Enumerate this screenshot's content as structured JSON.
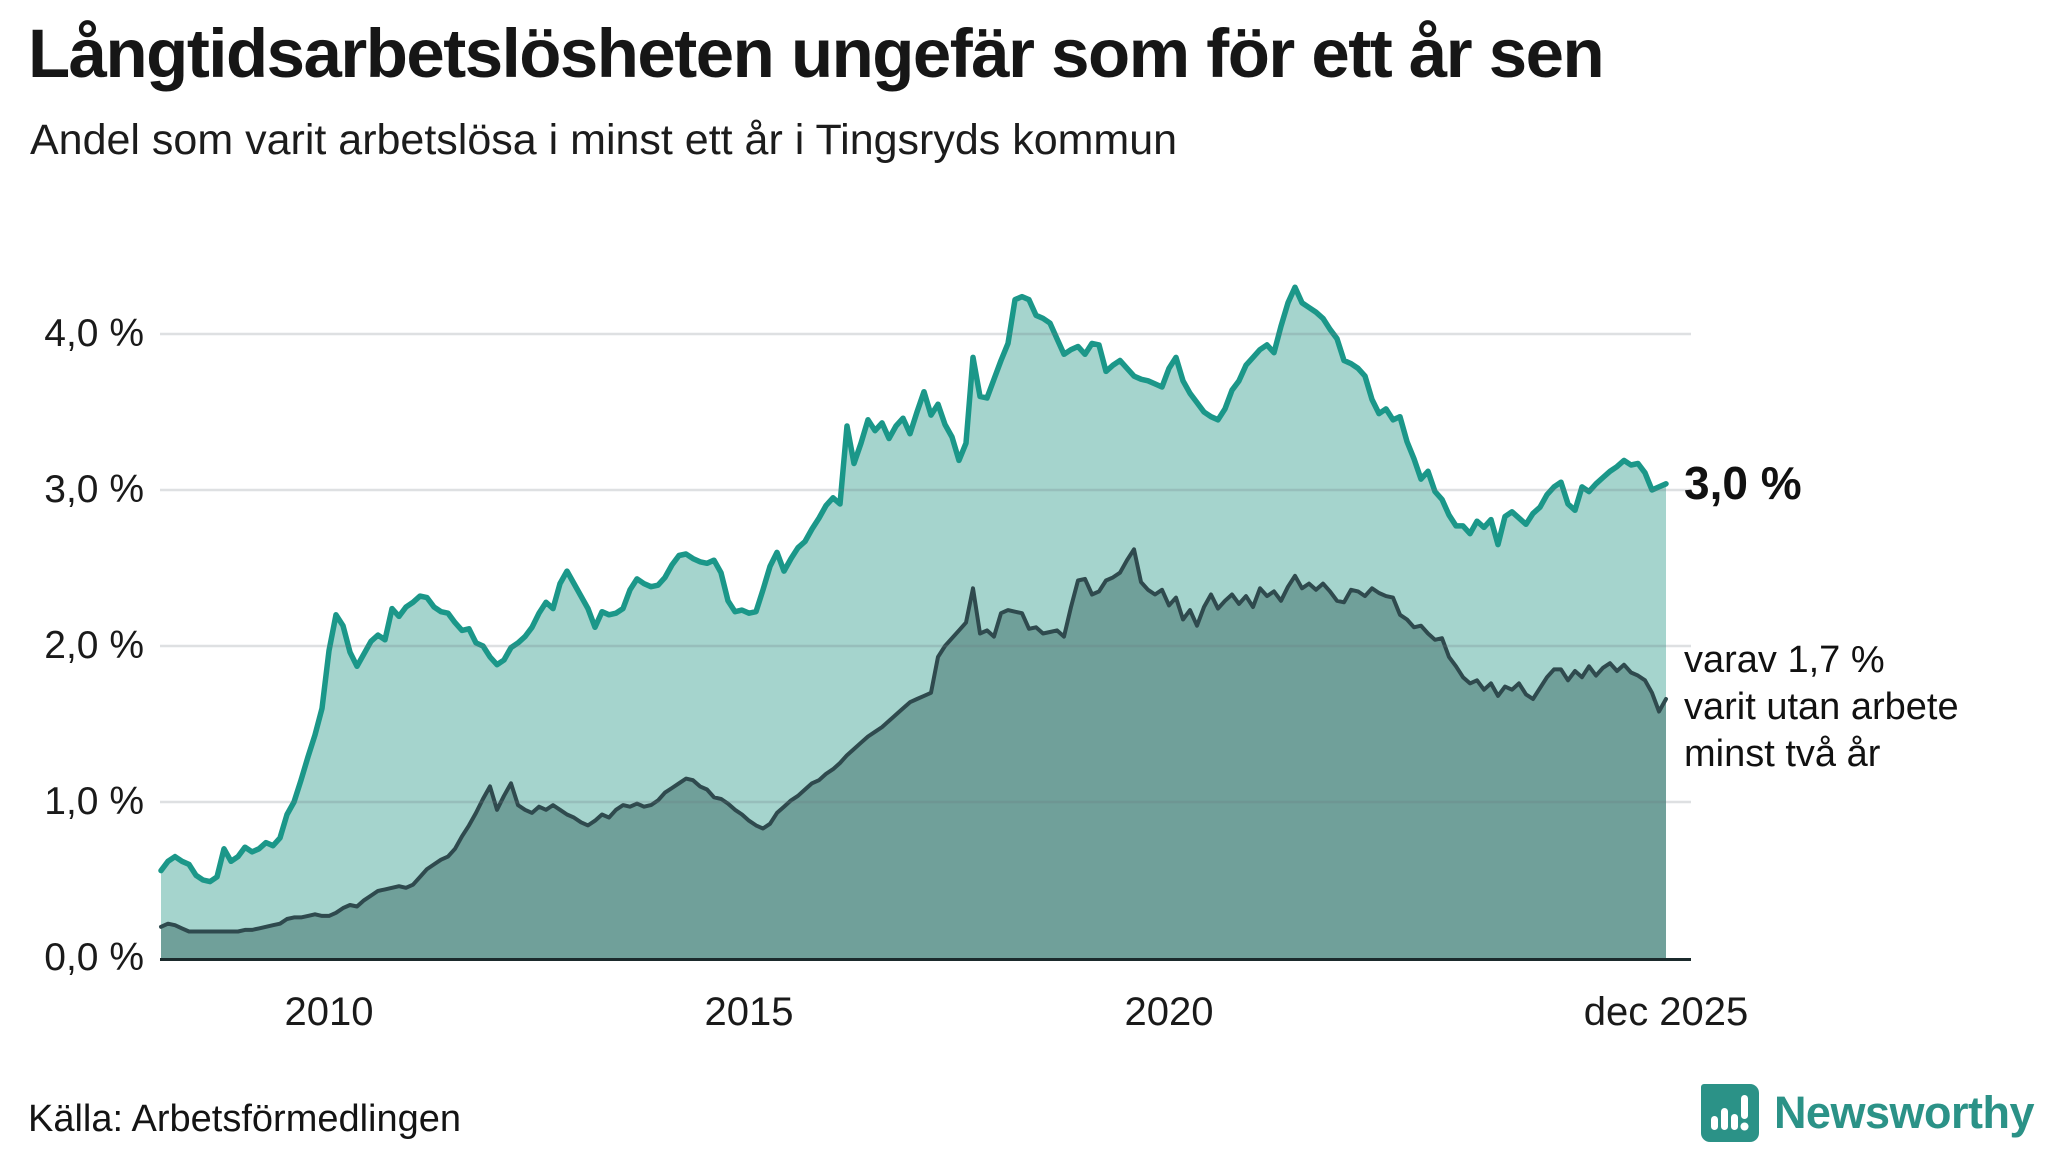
{
  "header": {
    "title": "Långtidsarbetslösheten ungefär som för ett år sen",
    "subtitle": "Andel som varit arbetslösa i minst ett år i Tingsryds kommun"
  },
  "footer": {
    "source": "Källa: Arbetsförmedlingen",
    "brand": "Newsworthy"
  },
  "colors": {
    "series1_line": "#1b9789",
    "series1_fill": "#a5d4cd",
    "series2_line": "#2f4a4e",
    "series2_fill": "#70a09a",
    "gridline": "rgba(105,112,125,0.22)",
    "axis": "#1b2a2c",
    "brand_teal": "#2b9287"
  },
  "chart_data": {
    "type": "area",
    "title": "Långtidsarbetslösheten ungefär som för ett år sen",
    "subtitle": "Andel som varit arbetslösa i minst ett år i Tingsryds kommun",
    "unit": "%",
    "x_start": "2008-01",
    "x_end": "2025-12",
    "frequency": "monthly",
    "ylim": [
      0,
      4.33
    ],
    "grid": true,
    "y_ticks": [
      {
        "label": "4,0 %",
        "value": 4.0
      },
      {
        "label": "3,0 %",
        "value": 3.0
      },
      {
        "label": "2,0 %",
        "value": 2.0
      },
      {
        "label": "1,0 %",
        "value": 1.0
      },
      {
        "label": "0,0 %",
        "value": 0.0
      }
    ],
    "x_ticks": [
      {
        "label": "2010",
        "month_index": 24
      },
      {
        "label": "2015",
        "month_index": 84
      },
      {
        "label": "2020",
        "month_index": 144
      },
      {
        "label": "dec 2025",
        "month_index": 215
      }
    ],
    "annotations": {
      "last_value_label": "3,0 %",
      "secondary_lines": [
        "varav 1,7 %",
        "varit utan arbete",
        "minst två år"
      ]
    },
    "series": [
      {
        "name": "Andel som varit arbetslösa minst ett år",
        "end_label": "3,0 %",
        "values": [
          0.56,
          0.62,
          0.65,
          0.62,
          0.6,
          0.53,
          0.5,
          0.49,
          0.52,
          0.7,
          0.62,
          0.65,
          0.71,
          0.68,
          0.7,
          0.74,
          0.72,
          0.77,
          0.92,
          1.0,
          1.14,
          1.29,
          1.43,
          1.6,
          1.97,
          2.2,
          2.13,
          1.96,
          1.87,
          1.95,
          2.03,
          2.07,
          2.04,
          2.24,
          2.19,
          2.25,
          2.28,
          2.32,
          2.31,
          2.25,
          2.22,
          2.21,
          2.15,
          2.1,
          2.11,
          2.02,
          2.0,
          1.93,
          1.88,
          1.91,
          1.99,
          2.02,
          2.06,
          2.12,
          2.21,
          2.28,
          2.24,
          2.4,
          2.48,
          2.4,
          2.32,
          2.24,
          2.12,
          2.22,
          2.2,
          2.21,
          2.24,
          2.36,
          2.43,
          2.4,
          2.38,
          2.39,
          2.44,
          2.52,
          2.58,
          2.59,
          2.56,
          2.54,
          2.53,
          2.55,
          2.47,
          2.29,
          2.22,
          2.23,
          2.21,
          2.22,
          2.36,
          2.51,
          2.6,
          2.48,
          2.56,
          2.63,
          2.67,
          2.75,
          2.82,
          2.9,
          2.95,
          2.91,
          3.41,
          3.17,
          3.3,
          3.45,
          3.38,
          3.43,
          3.33,
          3.41,
          3.46,
          3.36,
          3.5,
          3.63,
          3.48,
          3.55,
          3.42,
          3.34,
          3.19,
          3.3,
          3.85,
          3.6,
          3.59,
          3.71,
          3.83,
          3.94,
          4.22,
          4.24,
          4.22,
          4.12,
          4.1,
          4.07,
          3.97,
          3.87,
          3.9,
          3.92,
          3.87,
          3.94,
          3.93,
          3.76,
          3.8,
          3.83,
          3.78,
          3.73,
          3.71,
          3.7,
          3.68,
          3.66,
          3.78,
          3.85,
          3.7,
          3.62,
          3.56,
          3.5,
          3.47,
          3.45,
          3.52,
          3.64,
          3.7,
          3.8,
          3.85,
          3.9,
          3.93,
          3.88,
          4.05,
          4.2,
          4.3,
          4.2,
          4.17,
          4.14,
          4.1,
          4.03,
          3.97,
          3.83,
          3.81,
          3.78,
          3.73,
          3.58,
          3.49,
          3.52,
          3.45,
          3.47,
          3.31,
          3.2,
          3.07,
          3.12,
          2.99,
          2.94,
          2.84,
          2.77,
          2.77,
          2.72,
          2.8,
          2.76,
          2.81,
          2.65,
          2.83,
          2.86,
          2.82,
          2.78,
          2.85,
          2.89,
          2.97,
          3.02,
          3.05,
          2.91,
          2.87,
          3.02,
          2.99,
          3.04,
          3.08,
          3.12,
          3.15,
          3.19,
          3.16,
          3.17,
          3.11,
          3.0,
          3.02,
          3.04
        ]
      },
      {
        "name": "varav arbetslösa minst två år",
        "end_label": "1,7 %",
        "values": [
          0.2,
          0.22,
          0.21,
          0.19,
          0.17,
          0.17,
          0.17,
          0.17,
          0.17,
          0.17,
          0.17,
          0.17,
          0.18,
          0.18,
          0.19,
          0.2,
          0.21,
          0.22,
          0.25,
          0.26,
          0.26,
          0.27,
          0.28,
          0.27,
          0.27,
          0.29,
          0.32,
          0.34,
          0.33,
          0.37,
          0.4,
          0.43,
          0.44,
          0.45,
          0.46,
          0.45,
          0.47,
          0.52,
          0.57,
          0.6,
          0.63,
          0.65,
          0.7,
          0.78,
          0.85,
          0.93,
          1.02,
          1.1,
          0.95,
          1.04,
          1.12,
          0.98,
          0.95,
          0.93,
          0.97,
          0.95,
          0.98,
          0.95,
          0.92,
          0.9,
          0.87,
          0.85,
          0.88,
          0.92,
          0.9,
          0.95,
          0.98,
          0.97,
          0.99,
          0.97,
          0.98,
          1.01,
          1.06,
          1.09,
          1.12,
          1.15,
          1.14,
          1.1,
          1.08,
          1.03,
          1.02,
          0.99,
          0.95,
          0.92,
          0.88,
          0.85,
          0.83,
          0.86,
          0.93,
          0.97,
          1.01,
          1.04,
          1.08,
          1.12,
          1.14,
          1.18,
          1.21,
          1.25,
          1.3,
          1.34,
          1.38,
          1.42,
          1.45,
          1.48,
          1.52,
          1.56,
          1.6,
          1.64,
          1.66,
          1.68,
          1.7,
          1.93,
          2.0,
          2.05,
          2.1,
          2.15,
          2.37,
          2.08,
          2.1,
          2.06,
          2.21,
          2.23,
          2.22,
          2.21,
          2.11,
          2.12,
          2.08,
          2.09,
          2.1,
          2.06,
          2.25,
          2.42,
          2.43,
          2.33,
          2.35,
          2.42,
          2.44,
          2.47,
          2.55,
          2.62,
          2.41,
          2.36,
          2.33,
          2.36,
          2.26,
          2.31,
          2.17,
          2.23,
          2.13,
          2.25,
          2.33,
          2.24,
          2.29,
          2.33,
          2.27,
          2.32,
          2.25,
          2.37,
          2.32,
          2.35,
          2.29,
          2.38,
          2.45,
          2.37,
          2.4,
          2.36,
          2.4,
          2.35,
          2.29,
          2.28,
          2.36,
          2.35,
          2.32,
          2.37,
          2.34,
          2.32,
          2.31,
          2.2,
          2.17,
          2.12,
          2.13,
          2.08,
          2.04,
          2.05,
          1.93,
          1.87,
          1.8,
          1.76,
          1.78,
          1.72,
          1.76,
          1.68,
          1.74,
          1.72,
          1.76,
          1.69,
          1.66,
          1.73,
          1.8,
          1.85,
          1.85,
          1.78,
          1.84,
          1.8,
          1.87,
          1.81,
          1.86,
          1.89,
          1.84,
          1.88,
          1.83,
          1.81,
          1.78,
          1.7,
          1.58,
          1.66
        ]
      }
    ]
  }
}
